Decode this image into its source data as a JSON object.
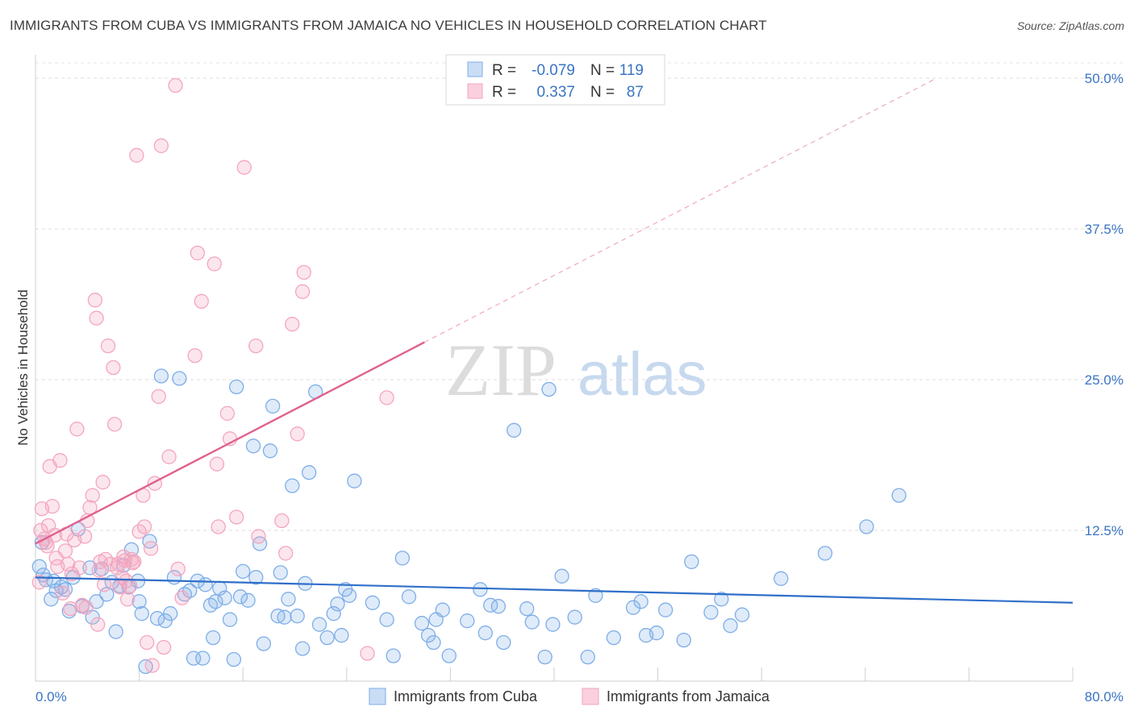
{
  "header": {
    "title": "IMMIGRANTS FROM CUBA VS IMMIGRANTS FROM JAMAICA NO VEHICLES IN HOUSEHOLD CORRELATION CHART",
    "source": "Source: ZipAtlas.com"
  },
  "watermark": {
    "zip": "ZIP",
    "atlas": "atlas"
  },
  "stats": {
    "r_label": "R =",
    "n_label": "N =",
    "cuba": {
      "r": "-0.079",
      "n": "119",
      "color": "#7eaee8"
    },
    "jamaica": {
      "r": "0.337",
      "n": "87",
      "color": "#f4a6bf"
    }
  },
  "chart_data": {
    "type": "scatter",
    "title": "IMMIGRANTS FROM CUBA VS IMMIGRANTS FROM JAMAICA NO VEHICLES IN HOUSEHOLD CORRELATION CHART",
    "xlabel": "",
    "ylabel": "No Vehicles in Household",
    "xlim": [
      0,
      80
    ],
    "ylim": [
      0,
      52
    ],
    "x_ticks": [
      "0.0%",
      "80.0%"
    ],
    "y_ticks": [
      {
        "value": 12.5,
        "label": "12.5%"
      },
      {
        "value": 25.0,
        "label": "25.0%"
      },
      {
        "value": 37.5,
        "label": "37.5%"
      },
      {
        "value": 50.0,
        "label": "50.0%"
      }
    ],
    "grid": true,
    "legend_position": "bottom-center",
    "series": [
      {
        "name": "Immigrants from Cuba",
        "color": "#7eaee8",
        "trend": {
          "x": [
            0,
            80
          ],
          "y": [
            8.6,
            6.5
          ],
          "color": "#2f6fc9"
        },
        "points": [
          [
            0.3,
            9.5
          ],
          [
            0.5,
            11.5
          ],
          [
            0.6,
            8.8
          ],
          [
            0.8,
            8.4
          ],
          [
            1.2,
            6.8
          ],
          [
            1.4,
            8.3
          ],
          [
            1.6,
            7.5
          ],
          [
            2.0,
            7.8
          ],
          [
            2.3,
            7.6
          ],
          [
            2.6,
            5.8
          ],
          [
            2.9,
            8.6
          ],
          [
            3.3,
            12.6
          ],
          [
            3.6,
            6.2
          ],
          [
            4.2,
            9.4
          ],
          [
            4.4,
            5.3
          ],
          [
            4.7,
            6.6
          ],
          [
            5.1,
            9.3
          ],
          [
            5.5,
            7.2
          ],
          [
            5.9,
            8.2
          ],
          [
            6.2,
            4.1
          ],
          [
            6.5,
            7.9
          ],
          [
            6.8,
            9.6
          ],
          [
            7.2,
            7.8
          ],
          [
            7.4,
            10.9
          ],
          [
            7.9,
            8.3
          ],
          [
            8.0,
            6.6
          ],
          [
            8.2,
            5.6
          ],
          [
            8.5,
            1.2
          ],
          [
            8.8,
            11.6
          ],
          [
            9.4,
            5.2
          ],
          [
            9.7,
            25.3
          ],
          [
            10.0,
            5.0
          ],
          [
            10.4,
            5.6
          ],
          [
            10.7,
            8.6
          ],
          [
            11.1,
            25.1
          ],
          [
            11.5,
            7.2
          ],
          [
            11.9,
            7.5
          ],
          [
            12.2,
            1.9
          ],
          [
            12.5,
            8.3
          ],
          [
            12.9,
            1.9
          ],
          [
            13.1,
            8.0
          ],
          [
            13.5,
            6.3
          ],
          [
            13.7,
            3.6
          ],
          [
            13.9,
            6.6
          ],
          [
            14.2,
            7.7
          ],
          [
            14.6,
            6.9
          ],
          [
            15.0,
            5.1
          ],
          [
            15.3,
            1.8
          ],
          [
            15.5,
            24.4
          ],
          [
            15.8,
            7.0
          ],
          [
            16.0,
            9.1
          ],
          [
            16.4,
            6.7
          ],
          [
            16.8,
            19.5
          ],
          [
            17.0,
            8.6
          ],
          [
            17.3,
            11.4
          ],
          [
            17.6,
            3.1
          ],
          [
            18.1,
            19.1
          ],
          [
            18.3,
            22.8
          ],
          [
            18.7,
            5.4
          ],
          [
            18.9,
            9.0
          ],
          [
            19.2,
            5.3
          ],
          [
            19.5,
            6.8
          ],
          [
            19.8,
            16.2
          ],
          [
            20.2,
            5.4
          ],
          [
            20.6,
            2.7
          ],
          [
            20.8,
            8.1
          ],
          [
            21.1,
            17.3
          ],
          [
            21.6,
            24.0
          ],
          [
            21.9,
            4.7
          ],
          [
            22.5,
            3.6
          ],
          [
            23.0,
            5.6
          ],
          [
            23.3,
            6.4
          ],
          [
            23.6,
            3.8
          ],
          [
            23.9,
            7.6
          ],
          [
            24.2,
            7.1
          ],
          [
            24.6,
            16.6
          ],
          [
            26.0,
            6.5
          ],
          [
            27.1,
            5.1
          ],
          [
            27.6,
            2.1
          ],
          [
            28.3,
            10.2
          ],
          [
            28.8,
            7.0
          ],
          [
            29.8,
            4.8
          ],
          [
            30.3,
            3.8
          ],
          [
            30.7,
            3.2
          ],
          [
            30.9,
            5.1
          ],
          [
            31.4,
            5.9
          ],
          [
            31.9,
            2.1
          ],
          [
            33.3,
            5.0
          ],
          [
            34.3,
            7.6
          ],
          [
            34.7,
            4.0
          ],
          [
            35.1,
            6.3
          ],
          [
            35.7,
            6.2
          ],
          [
            36.1,
            3.2
          ],
          [
            36.9,
            20.8
          ],
          [
            37.9,
            6.0
          ],
          [
            38.3,
            4.9
          ],
          [
            39.3,
            2.0
          ],
          [
            39.6,
            24.2
          ],
          [
            39.9,
            4.7
          ],
          [
            40.6,
            8.7
          ],
          [
            41.6,
            5.3
          ],
          [
            42.6,
            2.0
          ],
          [
            43.2,
            7.1
          ],
          [
            44.6,
            3.6
          ],
          [
            46.1,
            6.1
          ],
          [
            46.7,
            6.6
          ],
          [
            47.1,
            3.8
          ],
          [
            47.9,
            4.0
          ],
          [
            48.6,
            5.9
          ],
          [
            50.0,
            3.4
          ],
          [
            50.6,
            9.9
          ],
          [
            52.1,
            5.7
          ],
          [
            52.9,
            6.8
          ],
          [
            53.6,
            4.6
          ],
          [
            54.5,
            5.5
          ],
          [
            57.5,
            8.5
          ],
          [
            60.9,
            10.6
          ],
          [
            64.1,
            12.8
          ],
          [
            66.6,
            15.4
          ]
        ]
      },
      {
        "name": "Immigrants from Jamaica",
        "color": "#f4a6bf",
        "trend": {
          "x": [
            0,
            30
          ],
          "y": [
            11.4,
            28.1
          ],
          "color": "#e0608f",
          "extrapolate": {
            "x": [
              30,
              69.5
            ],
            "y": [
              28.1,
              50.0
            ]
          }
        },
        "points": [
          [
            0.3,
            8.2
          ],
          [
            0.4,
            12.5
          ],
          [
            0.5,
            14.3
          ],
          [
            0.7,
            11.8
          ],
          [
            0.9,
            11.2
          ],
          [
            1.1,
            17.8
          ],
          [
            1.3,
            14.5
          ],
          [
            1.5,
            12.1
          ],
          [
            1.7,
            9.5
          ],
          [
            1.9,
            18.3
          ],
          [
            2.1,
            7.3
          ],
          [
            2.3,
            10.8
          ],
          [
            2.5,
            9.7
          ],
          [
            2.7,
            6.0
          ],
          [
            3.0,
            11.7
          ],
          [
            3.2,
            20.9
          ],
          [
            3.4,
            9.4
          ],
          [
            3.6,
            6.3
          ],
          [
            3.8,
            12.0
          ],
          [
            4.0,
            13.3
          ],
          [
            4.2,
            14.4
          ],
          [
            4.4,
            15.4
          ],
          [
            4.6,
            31.6
          ],
          [
            4.7,
            30.1
          ],
          [
            4.8,
            4.7
          ],
          [
            5.0,
            9.9
          ],
          [
            5.2,
            16.5
          ],
          [
            5.4,
            10.1
          ],
          [
            5.6,
            27.8
          ],
          [
            5.8,
            9.7
          ],
          [
            6.0,
            26.0
          ],
          [
            6.1,
            21.3
          ],
          [
            6.3,
            9.4
          ],
          [
            6.5,
            7.8
          ],
          [
            6.7,
            8.6
          ],
          [
            6.9,
            10.0
          ],
          [
            7.1,
            6.8
          ],
          [
            7.3,
            7.9
          ],
          [
            7.5,
            9.8
          ],
          [
            7.6,
            9.9
          ],
          [
            7.8,
            43.6
          ],
          [
            8.0,
            12.4
          ],
          [
            8.3,
            15.4
          ],
          [
            8.6,
            3.2
          ],
          [
            8.9,
            11.0
          ],
          [
            9.0,
            1.3
          ],
          [
            9.2,
            16.4
          ],
          [
            9.5,
            23.6
          ],
          [
            9.7,
            44.4
          ],
          [
            9.9,
            2.8
          ],
          [
            10.3,
            18.6
          ],
          [
            10.8,
            49.4
          ],
          [
            11.0,
            9.3
          ],
          [
            11.3,
            6.9
          ],
          [
            12.3,
            27.0
          ],
          [
            12.5,
            35.5
          ],
          [
            12.8,
            31.5
          ],
          [
            13.8,
            34.6
          ],
          [
            14.0,
            18.0
          ],
          [
            14.1,
            12.8
          ],
          [
            14.8,
            22.2
          ],
          [
            15.0,
            20.1
          ],
          [
            15.5,
            13.6
          ],
          [
            16.1,
            42.6
          ],
          [
            17.0,
            27.8
          ],
          [
            17.2,
            12.0
          ],
          [
            19.0,
            13.3
          ],
          [
            19.3,
            10.6
          ],
          [
            19.8,
            29.6
          ],
          [
            20.2,
            20.5
          ],
          [
            20.6,
            32.3
          ],
          [
            20.7,
            33.9
          ],
          [
            25.6,
            2.3
          ],
          [
            27.1,
            23.5
          ],
          [
            6.8,
            10.3
          ],
          [
            4.9,
            9.2
          ],
          [
            2.8,
            8.9
          ],
          [
            1.6,
            10.2
          ],
          [
            3.9,
            6.1
          ],
          [
            5.3,
            8.0
          ],
          [
            6.4,
            9.7
          ],
          [
            7.0,
            8.3
          ],
          [
            7.4,
            10.1
          ],
          [
            8.4,
            12.8
          ],
          [
            1.0,
            12.9
          ],
          [
            0.8,
            11.5
          ],
          [
            2.4,
            12.2
          ]
        ]
      }
    ]
  }
}
